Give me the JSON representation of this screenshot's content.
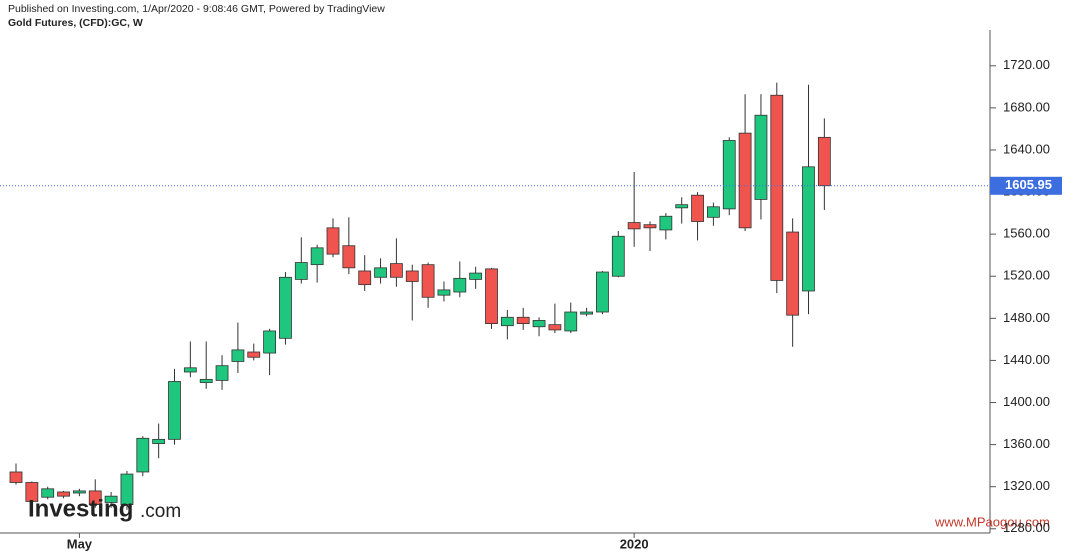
{
  "header": {
    "published": "Published on Investing.com, 1/Apr/2020 - 9:08:46 GMT, Powered by TradingView",
    "symbol": "Gold Futures, (CFD):GC, W"
  },
  "watermark": {
    "logo": "Investing",
    "logo_suffix": ".com",
    "site": "www.MPaogou.com"
  },
  "chart_data": {
    "type": "candlestick",
    "categories": [
      null,
      null,
      null,
      null,
      "May",
      null,
      null,
      null,
      null,
      null,
      null,
      null,
      null,
      null,
      null,
      null,
      null,
      null,
      null,
      null,
      null,
      null,
      null,
      null,
      null,
      null,
      null,
      null,
      null,
      null,
      null,
      null,
      null,
      null,
      null,
      null,
      null,
      null,
      null,
      "2020",
      null,
      null,
      null,
      null,
      null,
      null,
      null,
      null,
      null,
      null,
      null,
      null
    ],
    "open": [
      1334,
      1324,
      1310,
      1315,
      1314,
      1316,
      1305,
      1303,
      1334,
      1361,
      1365,
      1429,
      1419,
      1421,
      1439,
      1448,
      1447,
      1461,
      1517,
      1531,
      1566,
      1549,
      1525,
      1519,
      1532,
      1525,
      1531,
      1502,
      1505,
      1517,
      1527,
      1473,
      1481,
      1472,
      1474,
      1468,
      1484,
      1486,
      1520,
      1571,
      1569,
      1564,
      1585,
      1597,
      1576,
      1584,
      1656,
      1593,
      1692,
      1562,
      1506,
      1652
    ],
    "high": [
      1342,
      1325,
      1320,
      1316,
      1318,
      1327,
      1315,
      1335,
      1368,
      1380,
      1432,
      1458,
      1458,
      1445,
      1476,
      1456,
      1470,
      1524,
      1557,
      1550,
      1575,
      1576,
      1540,
      1537,
      1556,
      1531,
      1533,
      1515,
      1534,
      1529,
      1528,
      1488,
      1490,
      1481,
      1494,
      1495,
      1490,
      1525,
      1563,
      1619,
      1572,
      1580,
      1595,
      1600,
      1590,
      1652,
      1693,
      1693,
      1704,
      1575,
      1702,
      1670
    ],
    "low": [
      1322,
      1300,
      1308,
      1309,
      1311,
      1300,
      1300,
      1298,
      1330,
      1347,
      1360,
      1424,
      1413,
      1412,
      1428,
      1440,
      1426,
      1455,
      1513,
      1514,
      1538,
      1522,
      1506,
      1513,
      1510,
      1478,
      1490,
      1496,
      1500,
      1508,
      1470,
      1460,
      1469,
      1463,
      1466,
      1466,
      1482,
      1484,
      1519,
      1548,
      1544,
      1555,
      1570,
      1554,
      1568,
      1578,
      1563,
      1574,
      1504,
      1453,
      1484,
      1583
    ],
    "close": [
      1324,
      1306,
      1318,
      1311,
      1316,
      1303,
      1311,
      1332,
      1366,
      1365,
      1420,
      1433,
      1422,
      1435,
      1450,
      1443,
      1468,
      1519,
      1533,
      1547,
      1541,
      1528,
      1512,
      1528,
      1519,
      1515,
      1500,
      1507,
      1518,
      1523,
      1475,
      1481,
      1475,
      1478,
      1469,
      1486,
      1486,
      1524,
      1558,
      1565,
      1566,
      1577,
      1588,
      1572,
      1586,
      1649,
      1566,
      1673,
      1516,
      1483,
      1624,
      1606
    ],
    "up_color": "#1fc77e",
    "down_color": "#f0544f",
    "last_price": 1605.95,
    "last_price_color": "#3d6ee0",
    "ylim": [
      1276,
      1754
    ],
    "yticks": [
      {
        "value": 1280,
        "label": "1280.00"
      },
      {
        "value": 1320,
        "label": "1320.00"
      },
      {
        "value": 1360,
        "label": "1360.00"
      },
      {
        "value": 1400,
        "label": "1400.00"
      },
      {
        "value": 1440,
        "label": "1440.00"
      },
      {
        "value": 1480,
        "label": "1480.00"
      },
      {
        "value": 1520,
        "label": "1520.00"
      },
      {
        "value": 1560,
        "label": "1560.00"
      },
      {
        "value": 1600,
        "label": "1600.00"
      },
      {
        "value": 1640,
        "label": "1640.00"
      },
      {
        "value": 1680,
        "label": "1680.00"
      },
      {
        "value": 1720,
        "label": "1720.00"
      }
    ]
  }
}
